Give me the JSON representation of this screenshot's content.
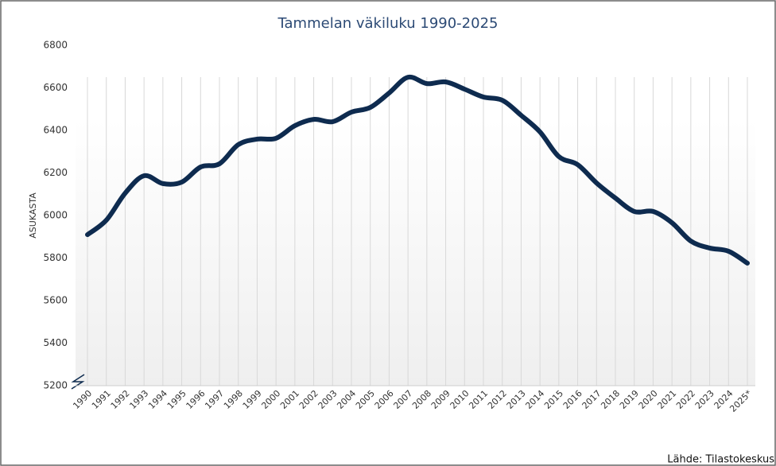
{
  "chart_data": {
    "type": "line",
    "title": "Tammelan väkiluku 1990-2025",
    "y_label": "ASUKASTA",
    "source": "Lähde: Tilastokeskus",
    "categories": [
      "1990",
      "1991",
      "1992",
      "1993",
      "1994",
      "1995",
      "1996",
      "1997",
      "1998",
      "1999",
      "2000",
      "2001",
      "2002",
      "2003",
      "2004",
      "2005",
      "2006",
      "2007",
      "2008",
      "2009",
      "2010",
      "2011",
      "2012",
      "2013",
      "2014",
      "2015",
      "2016",
      "2017",
      "2018",
      "2019",
      "2020",
      "2021",
      "2022",
      "2023",
      "2024",
      "2025*"
    ],
    "series": [
      {
        "name": "Väkiluku",
        "color": "#0e2b4f",
        "values": [
          5910,
          5978,
          6105,
          6187,
          6150,
          6157,
          6228,
          6243,
          6333,
          6359,
          6363,
          6422,
          6452,
          6441,
          6486,
          6508,
          6576,
          6650,
          6620,
          6628,
          6594,
          6557,
          6542,
          6471,
          6393,
          6277,
          6239,
          6153,
          6082,
          6019,
          6019,
          5966,
          5880,
          5847,
          5832,
          5776
        ]
      }
    ],
    "ylim": [
      5200,
      6800
    ],
    "yticks": [
      5200,
      5400,
      5600,
      5800,
      6000,
      6200,
      6400,
      6600,
      6800
    ],
    "grid": true
  }
}
